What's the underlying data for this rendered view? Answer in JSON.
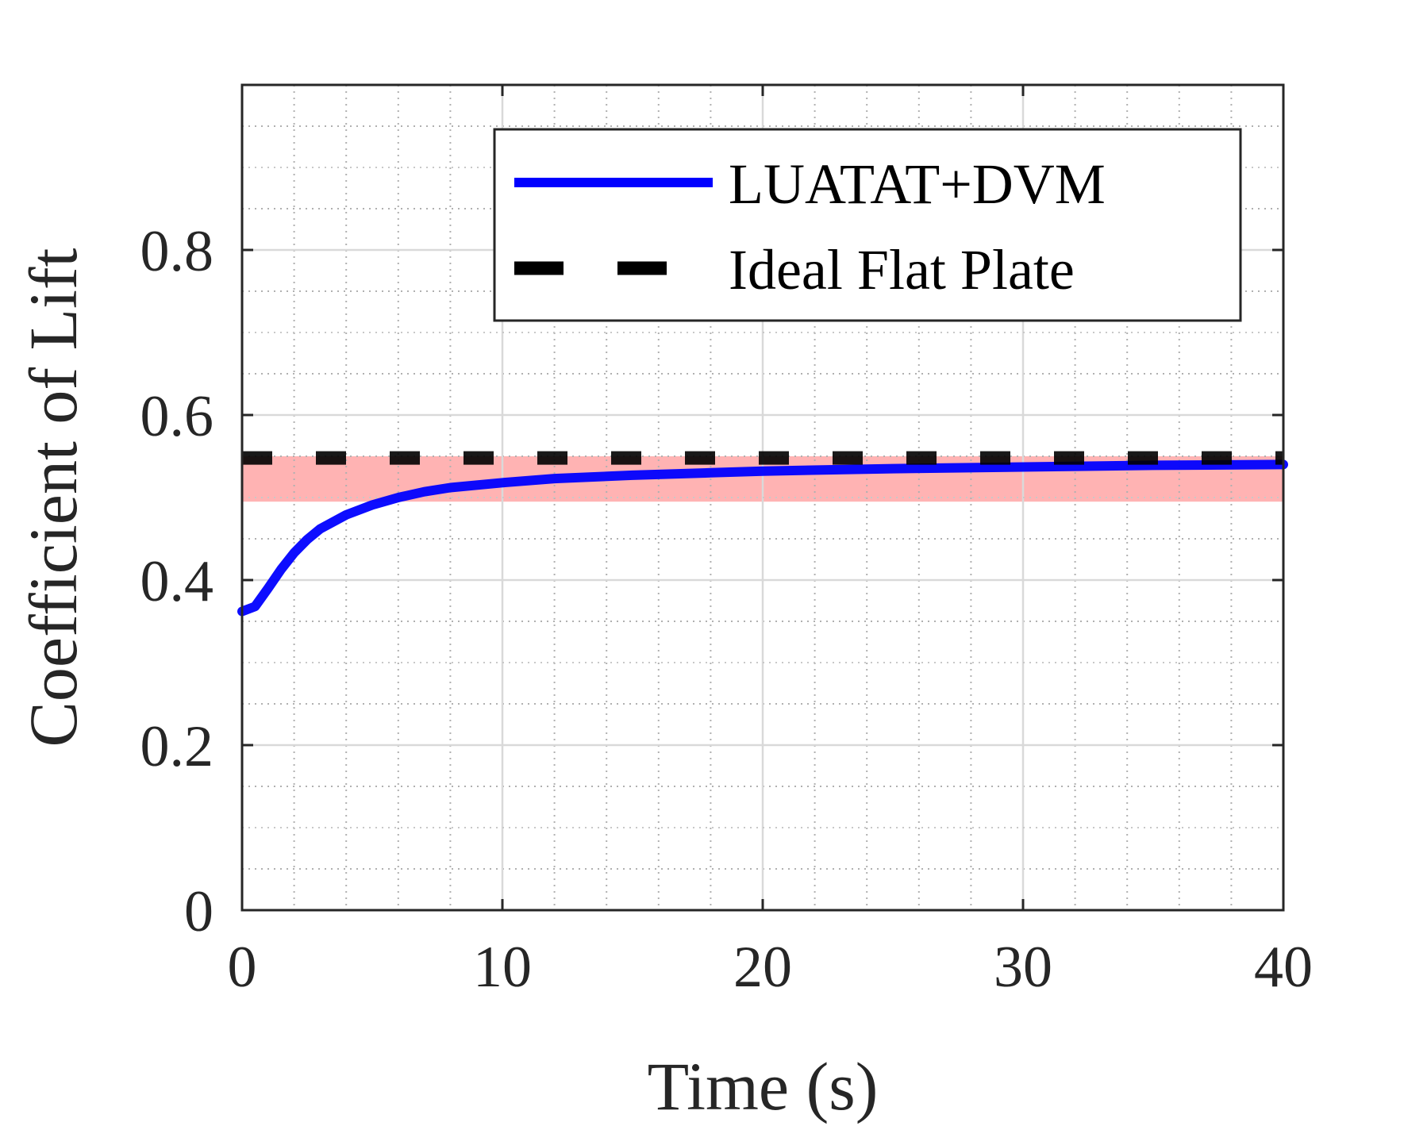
{
  "chart_data": {
    "type": "line",
    "xlabel": "Time (s)",
    "ylabel": "Coefficient of Lift",
    "xlim": [
      0,
      40
    ],
    "ylim": [
      0,
      1
    ],
    "xticks": [
      0,
      10,
      20,
      30,
      40
    ],
    "xtick_labels": [
      "0",
      "10",
      "20",
      "30",
      "40"
    ],
    "yticks": [
      0,
      0.2,
      0.4,
      0.6,
      0.8
    ],
    "ytick_labels": [
      "0",
      "0.2",
      "0.4",
      "0.6",
      "0.8"
    ],
    "x_minor_step": 2,
    "y_minor_step": 0.05,
    "grid": true,
    "minor_grid": true,
    "legend_position": "top-right",
    "band": {
      "y_min": 0.495,
      "y_max": 0.55,
      "color": "#ffb3b3"
    },
    "series": [
      {
        "name": "LUATAT+DVM",
        "style": "solid",
        "color": "#0000ff",
        "x": [
          0,
          0.5,
          1,
          1.5,
          2,
          2.5,
          3,
          4,
          5,
          6,
          7,
          8,
          10,
          12,
          15,
          18,
          20,
          25,
          30,
          35,
          40
        ],
        "y": [
          0.362,
          0.368,
          0.39,
          0.413,
          0.433,
          0.449,
          0.462,
          0.479,
          0.491,
          0.5,
          0.507,
          0.512,
          0.518,
          0.523,
          0.527,
          0.53,
          0.532,
          0.535,
          0.537,
          0.539,
          0.54
        ]
      },
      {
        "name": "Ideal Flat Plate",
        "style": "dashed",
        "color": "#000000",
        "x": [
          0,
          40
        ],
        "y": [
          0.548,
          0.548
        ]
      }
    ]
  }
}
